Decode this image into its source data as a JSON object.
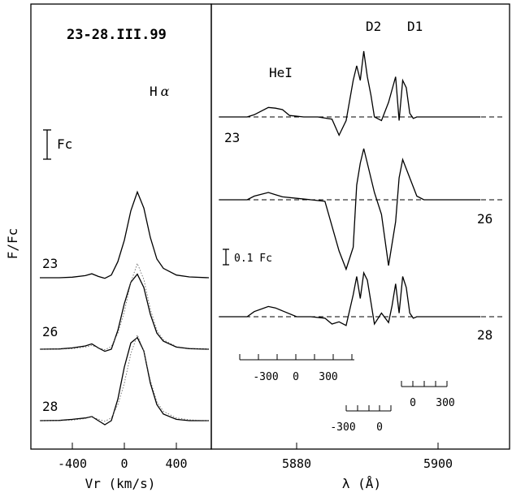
{
  "chart_data": [
    {
      "type": "line",
      "panel": "left",
      "title": "23-28.III.99",
      "line_label": "Hα",
      "line_label_main": "H",
      "line_label_sub": "α",
      "xlabel": "Vr (km/s)",
      "ylabel": "F/Fc",
      "xlim": [
        -700,
        750
      ],
      "x_ticks": [
        -400,
        0,
        400
      ],
      "x_tick_labels": [
        "-400",
        "0",
        "400"
      ],
      "scale_bar_label": "Fc",
      "series": [
        {
          "name": "23",
          "x": [
            -650,
            -500,
            -400,
            -300,
            -250,
            -200,
            -150,
            -100,
            -50,
            0,
            50,
            100,
            150,
            200,
            250,
            300,
            400,
            500,
            650
          ],
          "y": [
            1.0,
            1.0,
            1.02,
            1.08,
            1.15,
            1.05,
            0.98,
            1.1,
            1.6,
            2.4,
            3.5,
            4.2,
            3.6,
            2.5,
            1.7,
            1.35,
            1.1,
            1.03,
            1.0
          ]
        },
        {
          "name": "26",
          "x": [
            -650,
            -500,
            -400,
            -300,
            -250,
            -200,
            -150,
            -100,
            -50,
            0,
            50,
            100,
            150,
            200,
            250,
            300,
            400,
            500,
            650
          ],
          "y": [
            1.0,
            1.01,
            1.05,
            1.12,
            1.2,
            1.05,
            0.92,
            1.0,
            1.7,
            2.7,
            3.5,
            3.8,
            3.3,
            2.3,
            1.6,
            1.3,
            1.08,
            1.02,
            1.0
          ]
        },
        {
          "name": "28",
          "x": [
            -650,
            -500,
            -400,
            -300,
            -250,
            -200,
            -150,
            -100,
            -50,
            0,
            50,
            100,
            150,
            200,
            250,
            300,
            400,
            500,
            650
          ],
          "y": [
            1.0,
            1.01,
            1.05,
            1.1,
            1.15,
            1.0,
            0.85,
            1.0,
            1.8,
            3.0,
            3.9,
            4.1,
            3.6,
            2.4,
            1.6,
            1.25,
            1.05,
            1.0,
            1.0
          ]
        }
      ]
    },
    {
      "type": "line",
      "panel": "right",
      "xlabel": "λ (Å)",
      "xlim": [
        5867,
        5907.5
      ],
      "x_ticks": [
        5880,
        5900
      ],
      "x_tick_labels": [
        "5880",
        "5900"
      ],
      "line_labels": [
        "HeI",
        "D2",
        "D1"
      ],
      "scale_bar_label": "0.1 Fc",
      "velocity_scales": [
        {
          "labels": [
            "-300",
            "0",
            "300"
          ],
          "center": 5876
        },
        {
          "labels": [
            "-300",
            "0"
          ],
          "center": 5890
        },
        {
          "labels": [
            "0",
            "300"
          ],
          "center": 5896
        }
      ],
      "series": [
        {
          "name": "23",
          "x": [
            5869,
            5873,
            5874,
            5876,
            5877,
            5878,
            5879,
            5881,
            5883,
            5885,
            5886,
            5887,
            5888,
            5888.5,
            5889,
            5889.5,
            5890,
            5890.5,
            5891,
            5892,
            5893,
            5894,
            5894.5,
            5895,
            5895.5,
            5896,
            5896.5,
            5897,
            5898,
            5899,
            5900,
            5903,
            5906
          ],
          "y": [
            1.0,
            1.0,
            1.03,
            1.13,
            1.12,
            1.1,
            1.02,
            1.0,
            1.0,
            0.97,
            0.75,
            0.95,
            1.5,
            1.7,
            1.5,
            1.9,
            1.55,
            1.3,
            1.0,
            0.95,
            1.2,
            1.55,
            0.95,
            1.5,
            1.4,
            1.05,
            0.98,
            1.0,
            1.0,
            1.0,
            1.0,
            1.0,
            1.0
          ]
        },
        {
          "name": "26",
          "x": [
            5869,
            5873,
            5874,
            5876,
            5877,
            5878,
            5880,
            5882,
            5884,
            5886,
            5887,
            5888,
            5888.5,
            5889,
            5889.5,
            5890,
            5891,
            5892,
            5893,
            5894,
            5894.5,
            5895,
            5896,
            5897,
            5898,
            5899,
            5900,
            5903,
            5906
          ],
          "y": [
            1.0,
            1.0,
            1.05,
            1.1,
            1.07,
            1.04,
            1.02,
            1.0,
            0.98,
            0.3,
            0.05,
            0.35,
            1.2,
            1.5,
            1.7,
            1.5,
            1.1,
            0.8,
            0.1,
            0.7,
            1.3,
            1.55,
            1.3,
            1.05,
            1.0,
            1.0,
            1.0,
            1.0,
            1.0
          ]
        },
        {
          "name": "28",
          "x": [
            5869,
            5873,
            5874,
            5876,
            5877,
            5878,
            5880,
            5882,
            5884,
            5885,
            5886,
            5887,
            5888,
            5888.5,
            5889,
            5889.5,
            5890,
            5890.5,
            5891,
            5892,
            5893,
            5893.5,
            5894,
            5894.5,
            5895,
            5895.5,
            5896,
            5896.5,
            5897,
            5898,
            5899,
            5900,
            5903,
            5906
          ],
          "y": [
            1.0,
            1.0,
            1.07,
            1.14,
            1.12,
            1.08,
            1.0,
            1.0,
            0.98,
            0.9,
            0.93,
            0.88,
            1.3,
            1.55,
            1.25,
            1.6,
            1.5,
            1.2,
            0.9,
            1.05,
            0.92,
            1.15,
            1.45,
            1.05,
            1.55,
            1.4,
            1.05,
            0.98,
            1.0,
            1.0,
            1.0,
            1.0,
            1.0,
            1.0
          ]
        }
      ]
    }
  ]
}
